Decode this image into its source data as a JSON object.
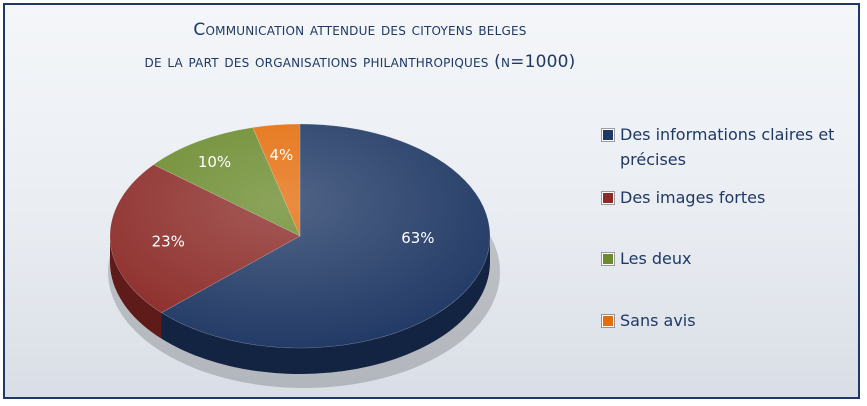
{
  "chart_data": {
    "type": "pie",
    "title_line1": "Communication attendue des citoyens belges",
    "title_line2": "de la part des organisations philanthropiques (n=1000)",
    "slices": [
      {
        "label": "Des informations claires et précises",
        "value": 63,
        "display": "63%",
        "color": "#1f3864",
        "side_color": "#132443"
      },
      {
        "label": "Des images fortes",
        "value": 23,
        "display": "23%",
        "color": "#8b2a27",
        "side_color": "#5e1b19"
      },
      {
        "label": "Les deux",
        "value": 10,
        "display": "10%",
        "color": "#6a8a2c",
        "side_color": "#4a611d"
      },
      {
        "label": "Sans avis",
        "value": 4,
        "display": "4%",
        "color": "#e46c0a",
        "side_color": "#a84f07"
      }
    ],
    "legend_position": "right"
  }
}
